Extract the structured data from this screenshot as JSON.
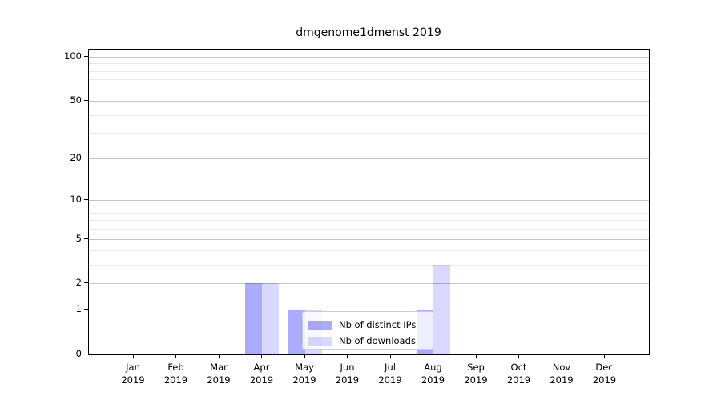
{
  "chart_data": {
    "type": "bar",
    "title": "dmgenome1dmenst 2019",
    "categories": [
      "Jan 2019",
      "Feb 2019",
      "Mar 2019",
      "Apr 2019",
      "May 2019",
      "Jun 2019",
      "Jul 2019",
      "Aug 2019",
      "Sep 2019",
      "Oct 2019",
      "Nov 2019",
      "Dec 2019"
    ],
    "x_ticks": [
      {
        "month": "Jan",
        "year": "2019"
      },
      {
        "month": "Feb",
        "year": "2019"
      },
      {
        "month": "Mar",
        "year": "2019"
      },
      {
        "month": "Apr",
        "year": "2019"
      },
      {
        "month": "May",
        "year": "2019"
      },
      {
        "month": "Jun",
        "year": "2019"
      },
      {
        "month": "Jul",
        "year": "2019"
      },
      {
        "month": "Aug",
        "year": "2019"
      },
      {
        "month": "Sep",
        "year": "2019"
      },
      {
        "month": "Oct",
        "year": "2019"
      },
      {
        "month": "Nov",
        "year": "2019"
      },
      {
        "month": "Dec",
        "year": "2019"
      }
    ],
    "series": [
      {
        "name": "Nb of distinct IPs",
        "color": "rgba(0,0,255,0.33)",
        "values": [
          0,
          0,
          0,
          2,
          1,
          0,
          0,
          1,
          0,
          0,
          0,
          0
        ]
      },
      {
        "name": "Nb of downloads",
        "color": "rgba(0,0,255,0.15)",
        "values": [
          0,
          0,
          0,
          2,
          1,
          0,
          0,
          3,
          0,
          0,
          0,
          0
        ]
      }
    ],
    "xlabel": "",
    "ylabel": "",
    "yscale": "log1p",
    "ylim": [
      0,
      100
    ],
    "y_major_ticks": [
      0,
      1,
      2,
      5,
      10,
      20,
      50,
      100
    ],
    "y_minor_ticks": [
      3,
      4,
      6,
      7,
      8,
      9,
      30,
      40,
      60,
      70,
      80,
      90
    ],
    "grid": true,
    "legend_position": "lower center"
  },
  "colors": {
    "major_grid": "#c4c4c4",
    "minor_grid": "#eaeaea",
    "spine": "#000000",
    "background": "#ffffff"
  }
}
